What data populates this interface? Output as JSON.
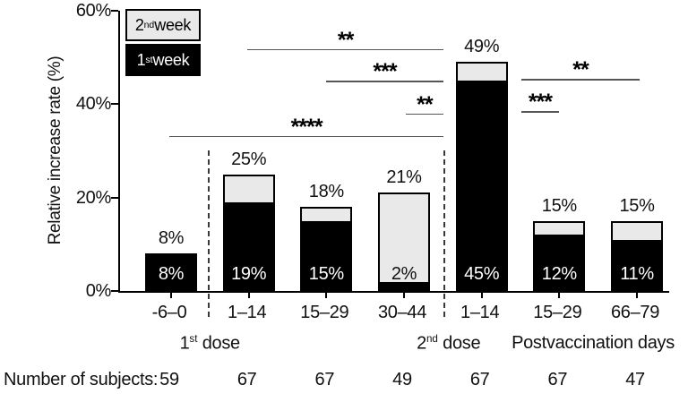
{
  "figure": {
    "description": "Stacked bar chart of relative increase rate by postvaccination day ranges",
    "background_color": "#ffffff",
    "bar_color_week1": "#000000",
    "bar_color_week2": "#e9e9e9"
  },
  "chart_data": {
    "type": "bar",
    "stacked": true,
    "title": "",
    "xlabel": "",
    "ylabel": "Relative increase rate (%)",
    "ylim": [
      0,
      60
    ],
    "grid": false,
    "legend_position": "top-left",
    "yticks": [
      "0%",
      "20%",
      "40%",
      "60%"
    ],
    "ytick_values": [
      0,
      20,
      40,
      60
    ],
    "categories": [
      "-6–0",
      "1–14",
      "15–29",
      "30–44",
      "1–14",
      "15–29",
      "66–79"
    ],
    "series": [
      {
        "name": "1st week",
        "color": "#000000",
        "values": [
          8,
          19,
          15,
          2,
          45,
          12,
          11
        ]
      },
      {
        "name": "2nd week",
        "color": "#e9e9e9",
        "values": [
          0,
          6,
          3,
          19,
          4,
          3,
          4
        ]
      }
    ],
    "totals": [
      8,
      25,
      18,
      21,
      49,
      15,
      15
    ],
    "bar_inner_labels": [
      "8%",
      "19%",
      "15%",
      "2%",
      "45%",
      "12%",
      "11%"
    ],
    "bar_total_labels": [
      "8%",
      "25%",
      "18%",
      "21%",
      "49%",
      "15%",
      "15%"
    ],
    "legend_items": [
      {
        "base": "2",
        "sup": "nd",
        "rest": " week",
        "fill": "#e9e9e9",
        "text_color": "#000000"
      },
      {
        "base": "1",
        "sup": "st",
        "rest": " week",
        "fill": "#000000",
        "text_color": "#ffffff"
      }
    ],
    "dose_groups": [
      {
        "base": "1",
        "sup": "st",
        "rest": " dose",
        "x_pct": 30.5
      },
      {
        "base": "2",
        "sup": "nd",
        "rest": " dose",
        "x_pct": 65.2
      },
      {
        "base": "",
        "sup": "",
        "rest": "Postvaccination days",
        "x_pct": 86.2
      }
    ],
    "dividers_x_pct": [
      16.0,
      58.9
    ],
    "significance": [
      {
        "stars": "**",
        "between": [
          1,
          4
        ],
        "x1_pct": 23.2,
        "x2_pct": 58.9,
        "y_value": 51.8
      },
      {
        "stars": "***",
        "between": [
          2,
          4
        ],
        "x1_pct": 37.5,
        "x2_pct": 58.9,
        "y_value": 45.0
      },
      {
        "stars": "**",
        "between": [
          3,
          4
        ],
        "x1_pct": 52.0,
        "x2_pct": 58.9,
        "y_value": 38.0
      },
      {
        "stars": "****",
        "between": [
          0,
          4
        ],
        "x1_pct": 9.0,
        "x2_pct": 58.9,
        "y_value": 33.2
      },
      {
        "stars": "**",
        "between": [
          4,
          6
        ],
        "x1_pct": 73.1,
        "x2_pct": 94.6,
        "y_value": 45.4
      },
      {
        "stars": "***",
        "between": [
          4,
          5
        ],
        "x1_pct": 73.1,
        "x2_pct": 79.9,
        "y_value": 38.5
      }
    ],
    "subjects": {
      "label": "Number of subjects:",
      "values": [
        59,
        67,
        67,
        49,
        67,
        67,
        47
      ]
    }
  }
}
